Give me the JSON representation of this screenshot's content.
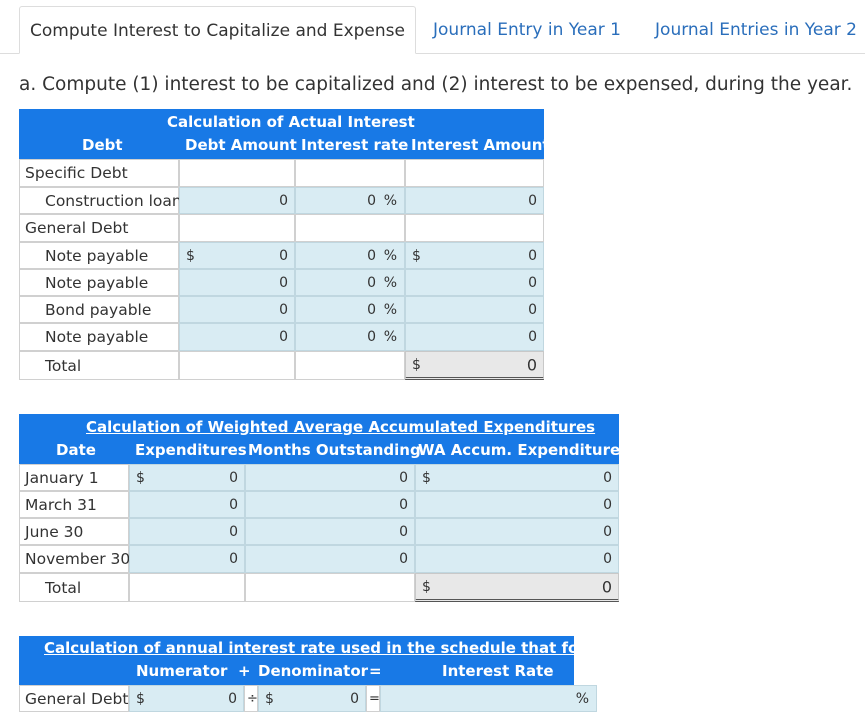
{
  "tabs": [
    {
      "label": "Compute Interest to Capitalize and Expense"
    },
    {
      "label": "Journal Entry in Year 1"
    },
    {
      "label": "Journal Entries in Year 2"
    }
  ],
  "question": "a. Compute (1) interest to be capitalized and (2) interest to be expensed, during the year.",
  "actual_interest": {
    "title": "Calculation of Actual Interest",
    "headers": {
      "debt": "Debt",
      "amount": "Debt Amount",
      "rate": "Interest rate",
      "interest": "Interest Amount"
    },
    "specific_label": "Specific Debt",
    "general_label": "General Debt",
    "rows": [
      {
        "label": "Construction loan",
        "amount": "0",
        "rate": "0",
        "interest": "0"
      },
      {
        "label": "Note payable",
        "amount": "0",
        "rate": "0",
        "interest": "0"
      },
      {
        "label": "Note payable",
        "amount": "0",
        "rate": "0",
        "interest": "0"
      },
      {
        "label": "Bond payable",
        "amount": "0",
        "rate": "0",
        "interest": "0"
      },
      {
        "label": "Note payable",
        "amount": "0",
        "rate": "0",
        "interest": "0"
      }
    ],
    "total_label": "Total",
    "total_value": "0",
    "currency": "$",
    "percent": "%"
  },
  "weighted": {
    "title": "Calculation of Weighted Average Accumulated Expenditures",
    "headers": {
      "date": "Date",
      "expenditures": "Expenditures",
      "months": "Months Outstanding",
      "wa": "WA Accum. Expenditures"
    },
    "rows": [
      {
        "date": "January 1",
        "exp": "0",
        "months": "0",
        "wa": "0"
      },
      {
        "date": "March 31",
        "exp": "0",
        "months": "0",
        "wa": "0"
      },
      {
        "date": "June 30",
        "exp": "0",
        "months": "0",
        "wa": "0"
      },
      {
        "date": "November 30",
        "exp": "0",
        "months": "0",
        "wa": "0"
      }
    ],
    "total_label": "Total",
    "total_value": "0",
    "currency": "$"
  },
  "rate_calc": {
    "title": "Calculation of annual interest rate used in the schedule that follows",
    "numerator": "Numerator",
    "plus": "+",
    "denominator": "Denominator",
    "equals": "=",
    "rate_label": "Interest Rate",
    "row_label": "General Debt",
    "numerator_value": "0",
    "divide": "÷",
    "denominator_value": "0",
    "currency": "$",
    "percent": "%"
  }
}
